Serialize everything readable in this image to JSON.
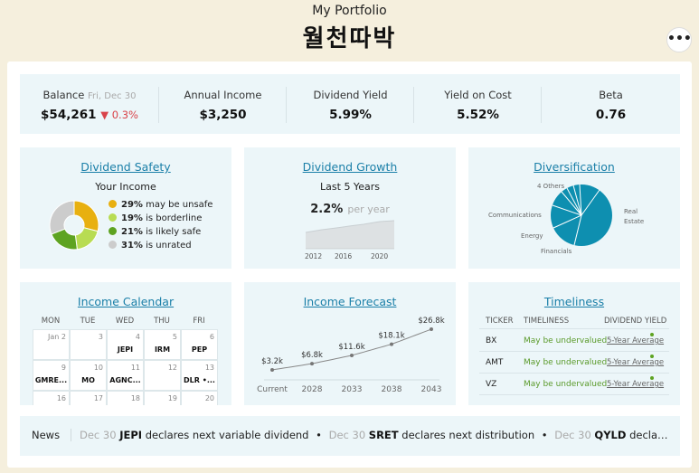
{
  "header": {
    "subtitle": "My Portfolio",
    "title": "월천따박",
    "menu_label": "•••"
  },
  "summary": {
    "balance": {
      "label": "Balance",
      "date": "Fri, Dec 30",
      "value": "$54,261",
      "change": "▼ 0.3%"
    },
    "annual_income": {
      "label": "Annual Income",
      "value": "$3,250"
    },
    "dividend_yield": {
      "label": "Dividend Yield",
      "value": "5.99%"
    },
    "yield_on_cost": {
      "label": "Yield on Cost",
      "value": "5.52%"
    },
    "beta": {
      "label": "Beta",
      "value": "0.76"
    }
  },
  "safety": {
    "title": "Dividend Safety",
    "subtitle": "Your Income",
    "items": [
      {
        "pct": "29%",
        "text": "may be unsafe",
        "value": 29,
        "color": "#e8b010"
      },
      {
        "pct": "19%",
        "text": "is borderline",
        "value": 19,
        "color": "#b8dc52"
      },
      {
        "pct": "21%",
        "text": "is likely safe",
        "value": 21,
        "color": "#5ea321"
      },
      {
        "pct": "31%",
        "text": "is unrated",
        "value": 31,
        "color": "#cccccc"
      }
    ]
  },
  "growth": {
    "title": "Dividend Growth",
    "subtitle": "Last 5 Years",
    "value": "2.2%",
    "unit": "per year",
    "years": [
      "2012",
      "2016",
      "2020"
    ]
  },
  "diversification": {
    "title": "Diversification",
    "labels": {
      "others": "4 Others",
      "communications": "Communications",
      "energy": "Energy",
      "financials": "Financials",
      "real_estate": "Real Estate"
    },
    "color": "#0e8fb0"
  },
  "calendar": {
    "title": "Income Calendar",
    "days": [
      "MON",
      "TUE",
      "WED",
      "THU",
      "FRI"
    ],
    "cells": [
      {
        "d": "Jan 2",
        "t": ""
      },
      {
        "d": "3",
        "t": ""
      },
      {
        "d": "4",
        "t": "JEPI"
      },
      {
        "d": "5",
        "t": "IRM"
      },
      {
        "d": "6",
        "t": "PEP"
      },
      {
        "d": "9",
        "t": "GMRE..."
      },
      {
        "d": "10",
        "t": "MO"
      },
      {
        "d": "11",
        "t": "AGNC..."
      },
      {
        "d": "12",
        "t": ""
      },
      {
        "d": "13",
        "t": "DLR •..."
      },
      {
        "d": "16",
        "t": ""
      },
      {
        "d": "17",
        "t": ""
      },
      {
        "d": "18",
        "t": ""
      },
      {
        "d": "19",
        "t": ""
      },
      {
        "d": "20",
        "t": ""
      }
    ]
  },
  "forecast": {
    "title": "Income Forecast",
    "points": [
      {
        "x": "Current",
        "label": "$3.2k",
        "value": 3.2
      },
      {
        "x": "2028",
        "label": "$6.8k",
        "value": 6.8
      },
      {
        "x": "2033",
        "label": "$11.6k",
        "value": 11.6
      },
      {
        "x": "2038",
        "label": "$18.1k",
        "value": 18.1
      },
      {
        "x": "2043",
        "label": "$26.8k",
        "value": 26.8
      }
    ]
  },
  "timeliness": {
    "title": "Timeliness",
    "headers": {
      "ticker": "TICKER",
      "timeliness": "TIMELINESS",
      "yield": "DIVIDEND YIELD"
    },
    "rows": [
      {
        "ticker": "BX",
        "status": "May be undervalued",
        "yield": "5-Year Average"
      },
      {
        "ticker": "AMT",
        "status": "May be undervalued",
        "yield": "5-Year Average"
      },
      {
        "ticker": "VZ",
        "status": "May be undervalued",
        "yield": "5-Year Average"
      }
    ]
  },
  "news": {
    "label": "News",
    "items": [
      {
        "date": "Dec 30",
        "ticker": "JEPI",
        "text": "declares next variable dividend"
      },
      {
        "date": "Dec 30",
        "ticker": "SRET",
        "text": "declares next distribution"
      },
      {
        "date": "Dec 30",
        "ticker": "QYLD",
        "text": "declares next variable d..."
      }
    ],
    "separator": "•"
  }
}
